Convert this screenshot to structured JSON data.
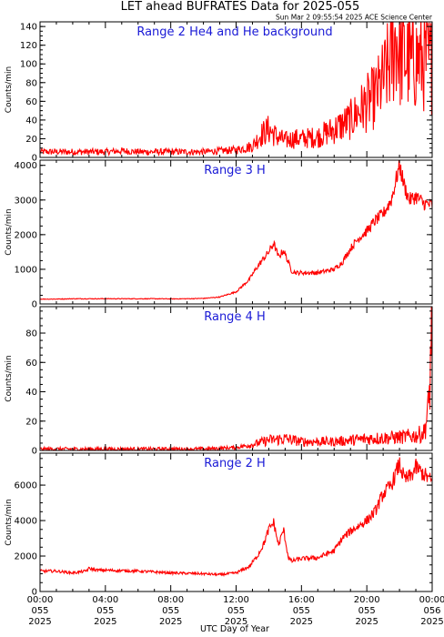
{
  "title": "LET ahead BUFRATES Data for 2025-055",
  "timestamp": "Sun Mar  2 09:55:54 2025 ACE Science Center",
  "xlabel": "UTC Day of Year",
  "colors": {
    "trace": "#ff0000",
    "panel_title": "#1a1ad6",
    "axes": "#000000"
  },
  "x_ticks": [
    {
      "hour": 0,
      "lines": [
        "00:00",
        "055",
        "2025"
      ]
    },
    {
      "hour": 4,
      "lines": [
        "04:00",
        "055",
        "2025"
      ]
    },
    {
      "hour": 8,
      "lines": [
        "08:00",
        "055",
        "2025"
      ]
    },
    {
      "hour": 12,
      "lines": [
        "12:00",
        "055",
        "2025"
      ]
    },
    {
      "hour": 16,
      "lines": [
        "16:00",
        "055",
        "2025"
      ]
    },
    {
      "hour": 20,
      "lines": [
        "20:00",
        "055",
        "2025"
      ]
    },
    {
      "hour": 24,
      "lines": [
        "00:00",
        "056",
        "2025"
      ]
    }
  ],
  "chart_data": [
    {
      "type": "line",
      "title": "Range 2 He4 and He background",
      "ylabel": "Counts/min",
      "xlim": [
        0,
        24
      ],
      "ylim": [
        0,
        145
      ],
      "yticks": [
        0,
        20,
        40,
        60,
        80,
        100,
        120,
        140
      ],
      "series": [
        {
          "x": [
            0,
            1,
            2,
            3,
            4,
            5,
            6,
            7,
            8,
            9,
            10,
            11,
            12,
            13,
            13.5,
            14,
            14.5,
            15,
            15.5,
            16,
            17,
            18,
            19,
            20,
            20.5,
            21,
            21.5,
            21.8,
            22,
            22.3,
            22.7,
            23,
            23.5,
            24
          ],
          "values": [
            6,
            6,
            6,
            6,
            6,
            7,
            6,
            6,
            6,
            6,
            6,
            7,
            8,
            12,
            24,
            30,
            22,
            18,
            20,
            20,
            22,
            30,
            40,
            58,
            65,
            82,
            105,
            130,
            110,
            108,
            100,
            105,
            103,
            100
          ]
        }
      ]
    },
    {
      "type": "line",
      "title": "Range 3 H",
      "ylabel": "Counts/min",
      "xlim": [
        0,
        24
      ],
      "ylim": [
        0,
        4150
      ],
      "yticks": [
        0,
        1000,
        2000,
        3000,
        4000
      ],
      "series": [
        {
          "x": [
            0,
            1,
            2,
            3,
            4,
            5,
            6,
            7,
            8,
            9,
            10,
            11,
            12,
            12.8,
            13.2,
            13.5,
            14,
            14.3,
            14.6,
            14.9,
            15.2,
            15.4,
            15.7,
            16,
            17,
            18,
            18.5,
            19,
            19.5,
            20,
            20.5,
            21,
            21.5,
            22,
            22.3,
            22.6,
            23,
            23.5,
            24
          ],
          "values": [
            140,
            140,
            150,
            150,
            150,
            150,
            150,
            150,
            145,
            150,
            160,
            200,
            350,
            700,
            1000,
            1200,
            1500,
            1750,
            1350,
            1550,
            1200,
            950,
            900,
            900,
            900,
            1000,
            1200,
            1600,
            1900,
            2100,
            2400,
            2600,
            3000,
            4000,
            3400,
            3000,
            3100,
            2900,
            2850
          ]
        }
      ]
    },
    {
      "type": "line",
      "title": "Range 4 H",
      "ylabel": "Counts/min",
      "xlim": [
        0,
        24
      ],
      "ylim": [
        0,
        98
      ],
      "yticks": [
        0,
        20,
        40,
        60,
        80
      ],
      "series": [
        {
          "x": [
            0,
            2,
            4,
            6,
            8,
            10,
            12,
            13,
            14,
            15,
            16,
            18,
            20,
            22,
            23,
            23.5,
            23.8,
            24
          ],
          "values": [
            1,
            1,
            1,
            1,
            1,
            1,
            2,
            4,
            7,
            8,
            6,
            6,
            8,
            9,
            10,
            12,
            30,
            95
          ]
        }
      ]
    },
    {
      "type": "line",
      "title": "Range 2 H",
      "ylabel": "Counts/min",
      "xlim": [
        0,
        24
      ],
      "ylim": [
        0,
        7800
      ],
      "yticks": [
        0,
        2000,
        4000,
        6000
      ],
      "series": [
        {
          "x": [
            0,
            1,
            2,
            2.8,
            3,
            3.5,
            4,
            6,
            8,
            10,
            11,
            12,
            12.8,
            13.3,
            13.7,
            14,
            14.3,
            14.6,
            14.9,
            15.2,
            15.4,
            15.7,
            16,
            17,
            18,
            18.5,
            19,
            19.5,
            20,
            20.5,
            21,
            21.5,
            22,
            22.3,
            22.7,
            23,
            23.5,
            24
          ],
          "values": [
            1150,
            1150,
            1050,
            1150,
            1300,
            1200,
            1200,
            1150,
            1050,
            1000,
            950,
            1050,
            1400,
            2000,
            2700,
            3500,
            3900,
            2600,
            3500,
            1900,
            1700,
            1800,
            1850,
            1900,
            2300,
            3000,
            3400,
            3700,
            4000,
            4500,
            5500,
            6000,
            7200,
            6300,
            6500,
            7000,
            6600,
            6200
          ]
        }
      ]
    }
  ]
}
